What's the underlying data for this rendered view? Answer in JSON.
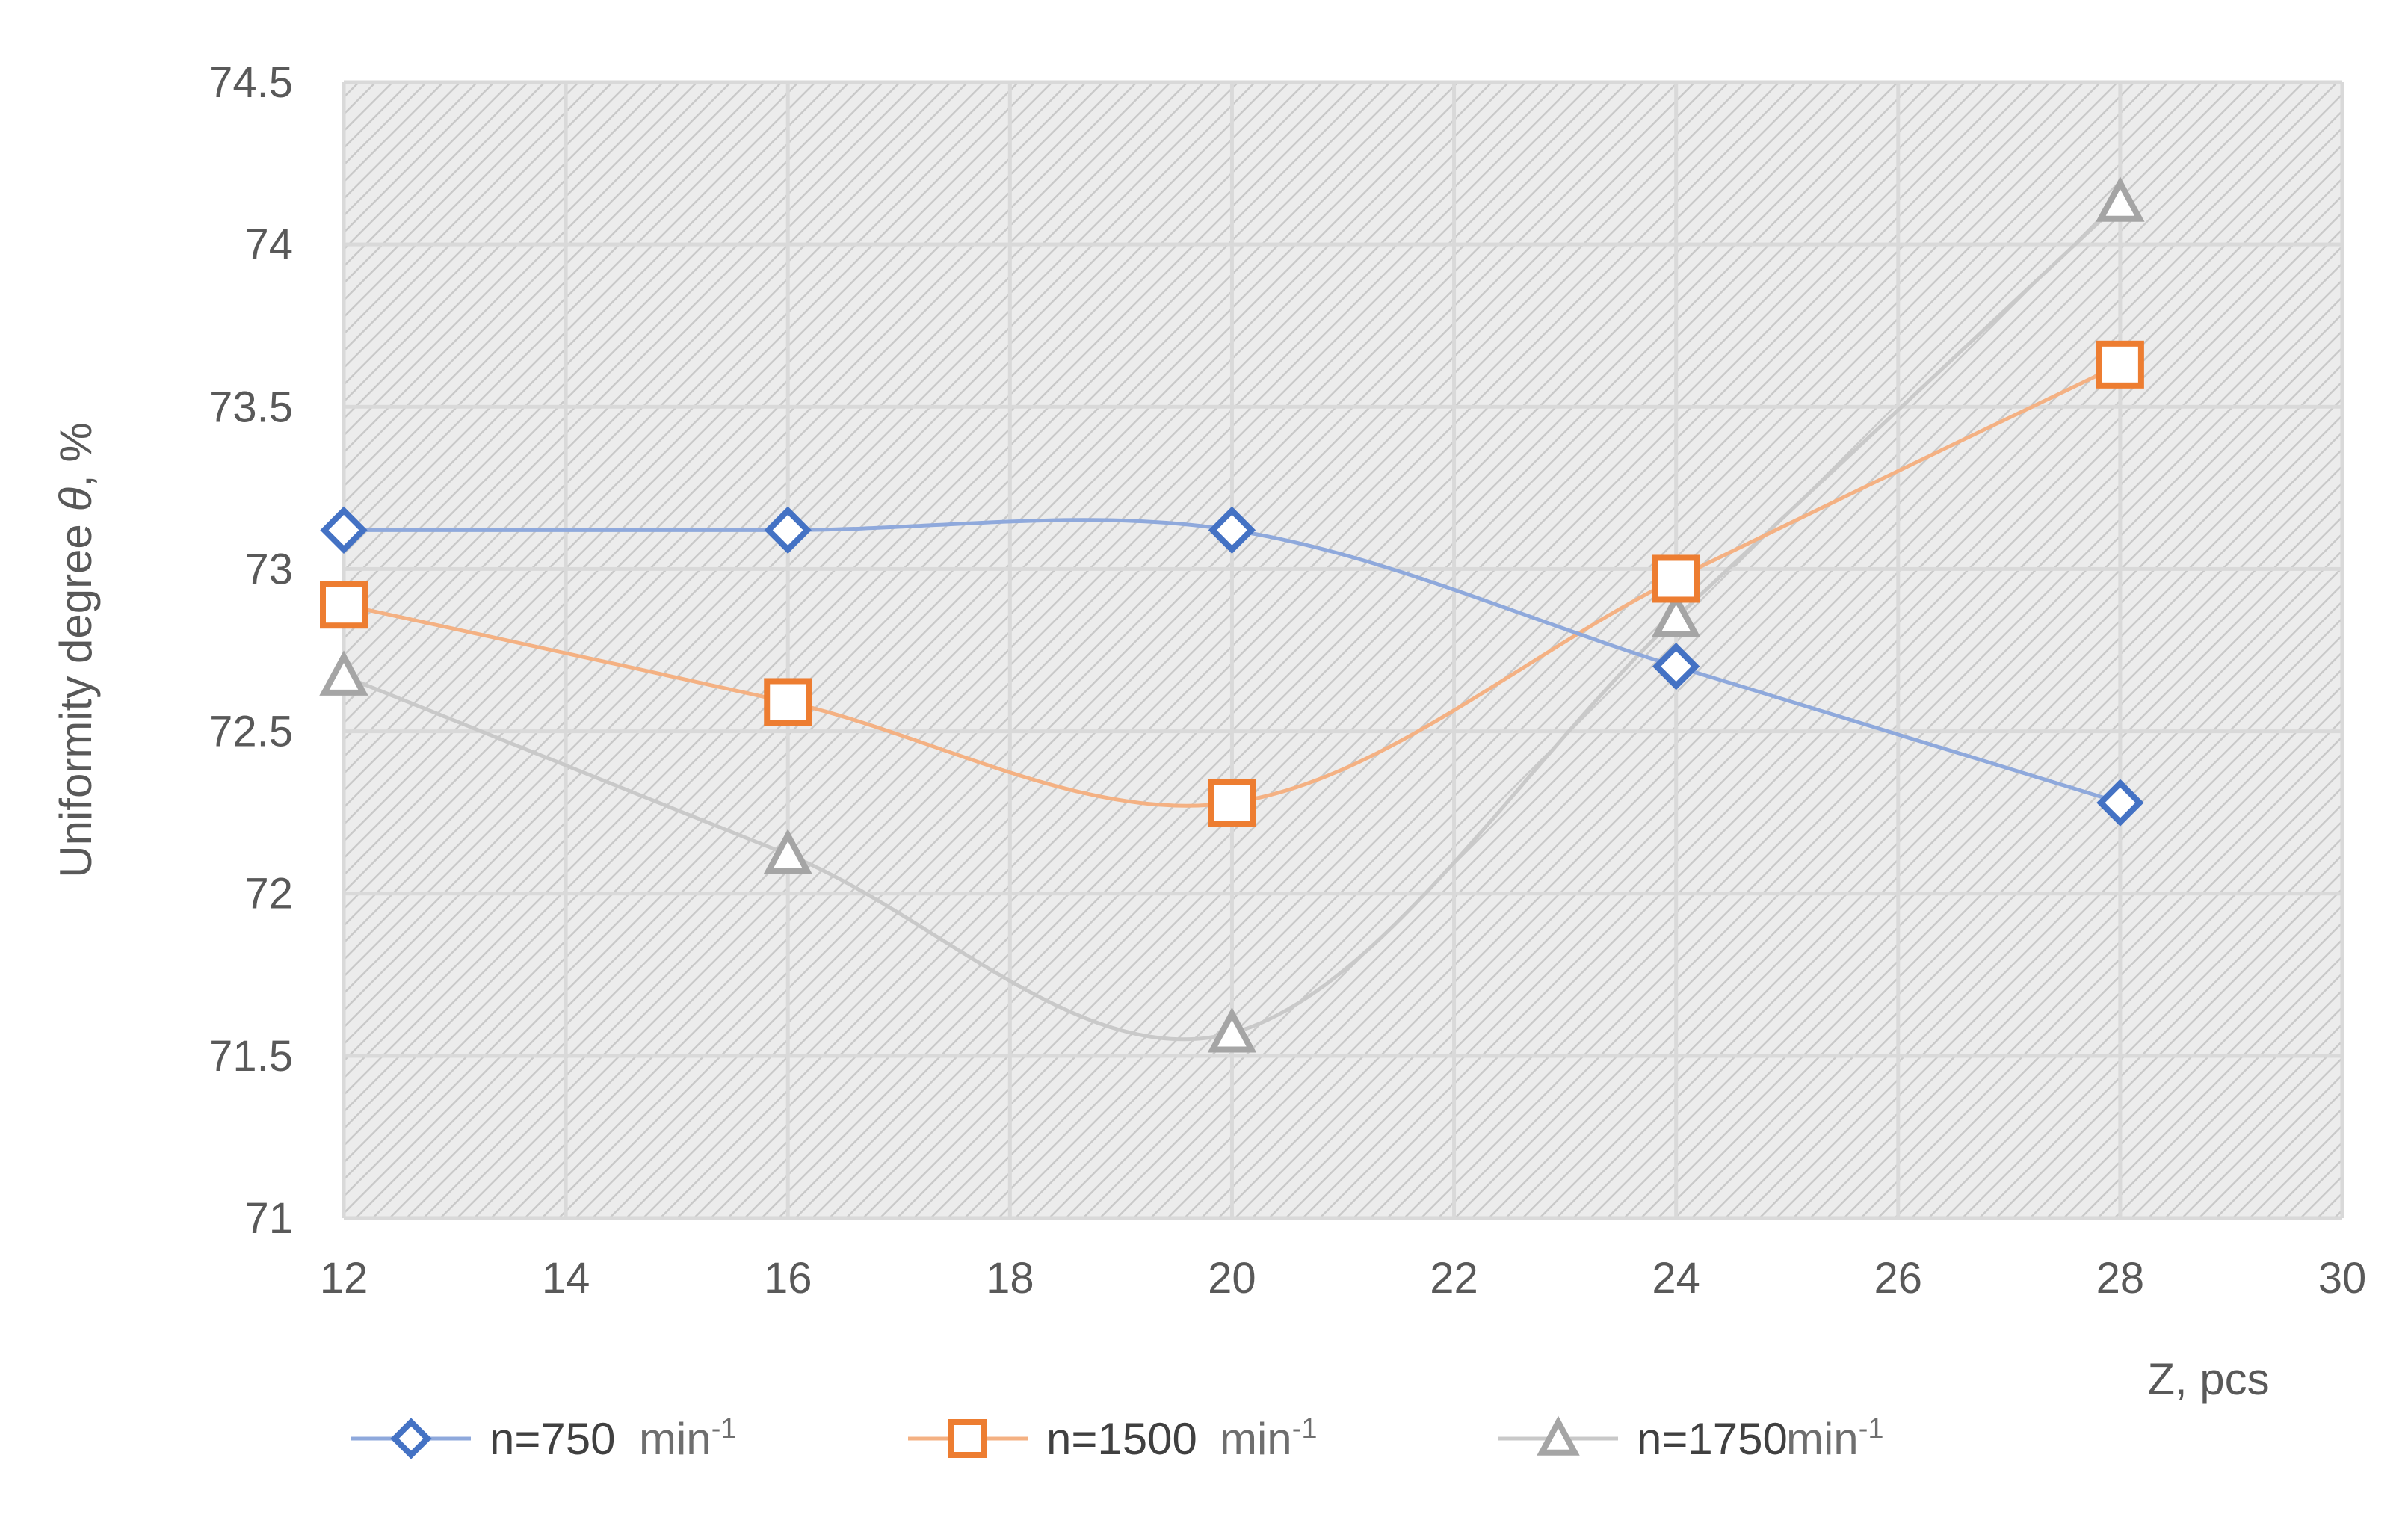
{
  "chart_data": {
    "type": "line",
    "xlabel": "Z, pcs",
    "ylabel_prefix": "Uniformity degree ",
    "ylabel_symbol": "θ",
    "ylabel_suffix": ", %",
    "xlim": [
      12,
      30
    ],
    "ylim": [
      71,
      74.5
    ],
    "x_ticks": [
      12,
      14,
      16,
      18,
      20,
      22,
      24,
      26,
      28,
      30
    ],
    "y_ticks": [
      71,
      71.5,
      72,
      72.5,
      73,
      73.5,
      74,
      74.5
    ],
    "x_tick_labels": [
      "12",
      "14",
      "16",
      "18",
      "20",
      "22",
      "24",
      "26",
      "28",
      "30"
    ],
    "y_tick_labels": [
      "71",
      "71.5",
      "72",
      "72.5",
      "73",
      "73.5",
      "74",
      "74.5"
    ],
    "grid": true,
    "smooth": true,
    "plot_background": "hatched",
    "legend_position": "bottom",
    "x": [
      12,
      16,
      20,
      24,
      28
    ],
    "series": [
      {
        "name": "n=750",
        "unit": "min",
        "unit_exp": "-1",
        "marker": "diamond",
        "line_color": "#8fa9dc",
        "marker_color": "#4472c4",
        "values": [
          73.12,
          73.12,
          73.12,
          72.7,
          72.28
        ]
      },
      {
        "name": "n=1500",
        "unit": "min",
        "unit_exp": "-1",
        "marker": "square",
        "line_color": "#f4b183",
        "marker_color": "#ed7d31",
        "values": [
          72.89,
          72.59,
          72.28,
          72.97,
          73.63
        ]
      },
      {
        "name": "n=1750",
        "unit": "min",
        "unit_exp": "-1",
        "marker": "triangle",
        "line_color": "#c9c9c9",
        "marker_color": "#a5a5a5",
        "values": [
          72.67,
          72.12,
          71.57,
          72.85,
          74.13
        ]
      }
    ]
  }
}
